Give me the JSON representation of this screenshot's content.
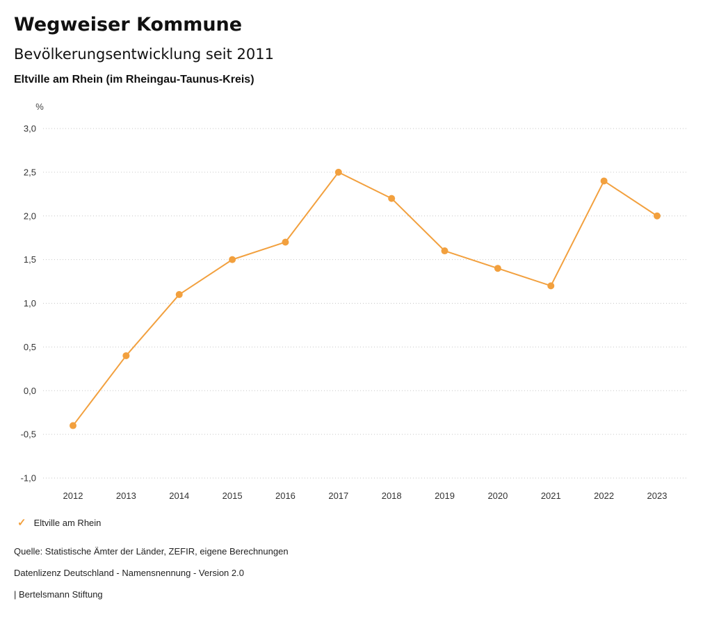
{
  "header": {
    "title": "Wegweiser Kommune",
    "subtitle": "Bevölkerungsentwicklung seit 2011",
    "region": "Eltville am Rhein (im Rheingau-Taunus-Kreis)"
  },
  "chart_data": {
    "type": "line",
    "title": "Bevölkerungsentwicklung seit 2011",
    "unit_label": "%",
    "xlabel": "",
    "ylabel": "%",
    "categories": [
      "2012",
      "2013",
      "2014",
      "2015",
      "2016",
      "2017",
      "2018",
      "2019",
      "2020",
      "2021",
      "2022",
      "2023"
    ],
    "series": [
      {
        "name": "Eltville am Rhein",
        "color": "#F2A03E",
        "values": [
          -0.4,
          0.4,
          1.1,
          1.5,
          1.7,
          2.5,
          2.2,
          1.6,
          1.4,
          1.2,
          2.4,
          2.0
        ]
      }
    ],
    "ylim": [
      -1.0,
      3.0
    ],
    "ytick_step": 0.5,
    "ytick_labels": [
      "3,0",
      "2,5",
      "2,0",
      "1,5",
      "1,0",
      "0,5",
      "0,0",
      "-0,5",
      "-1,0"
    ],
    "grid": true,
    "grid_style": "dotted",
    "legend_position": "bottom-left"
  },
  "legend": {
    "check_glyph": "✓",
    "label": "Eltville am Rhein",
    "color": "#F2A03E"
  },
  "footer": {
    "source": "Quelle: Statistische Ämter der Länder, ZEFIR, eigene Berechnungen",
    "license": "Datenlizenz Deutschland - Namensnennung - Version 2.0",
    "attribution": "| Bertelsmann Stiftung"
  }
}
